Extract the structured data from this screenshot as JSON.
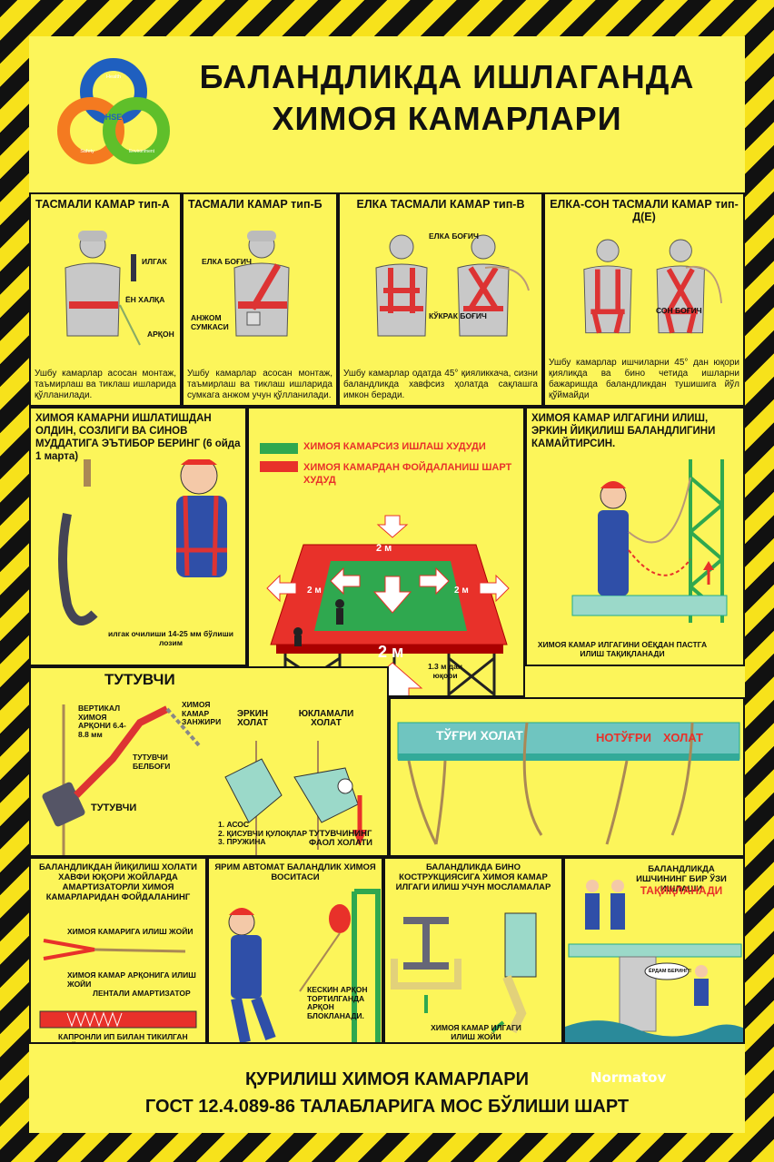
{
  "title_line1": "БАЛАНДЛИКДА ИШЛАГАНДА",
  "title_line2": "ХИМОЯ КАМАРЛАРИ",
  "logo": {
    "center": "HSE",
    "top": "Health",
    "left": "Safety",
    "right": "Environment",
    "colors": [
      "#1f5fbf",
      "#f47a20",
      "#5fbf2a"
    ]
  },
  "belts": [
    {
      "title": "ТАСМАЛИ КАМАР тип-А",
      "labels": [
        "ИЛГАК",
        "ЁН ХАЛҚА",
        "АРҚОН"
      ],
      "text": "Ушбу камарлар асосан монтаж, таъмирлаш ва тиклаш ишларида қўлланилади."
    },
    {
      "title": "ТАСМАЛИ КАМАР тип-Б",
      "labels": [
        "ЕЛКА БОҒИЧ",
        "АНЖОМ СУМКАСИ"
      ],
      "text": "Ушбу камарлар асосан монтаж, таъмирлаш ва тиклаш ишларида сумкага анжом учун қўлланилади."
    },
    {
      "title": "ЕЛКА ТАСМАЛИ КАМАР тип-В",
      "labels": [
        "ЕЛКА БОҒИЧ",
        "КЎКРАК БОҒИЧ"
      ],
      "text": "Ушбу камарлар одатда 45° қияликкача, сизни баландликда хавфсиз ҳолатда сақлашга имкон беради."
    },
    {
      "title": "ЕЛКА-СОН ТАСМАЛИ КАМАР тип-Д(Е)",
      "labels": [
        "СОН БОҒИЧ"
      ],
      "text": "Ушбу камарлар ишчиларни 45° дан юқори қияликда ва бино четида ишларни бажаришда баландликдан тушишига йўл қўймайди"
    }
  ],
  "check": {
    "title": "ХИМОЯ КАМАРНИ ИШЛАТИШДАН ОЛДИН, СОЗЛИГИ ВА СИНОВ МУДДАТИГА ЭЪТИБОР БЕРИНГ (6 ойда 1 марта)",
    "note": "илгак очилиши 14-25 мм бўлиши лозим"
  },
  "zone": {
    "legend_green": "ХИМОЯ КАМАРСИЗ ИШЛАШ ХУДУДИ",
    "legend_red": "ХИМОЯ КАМАРДАН ФОЙДАЛАНИШ ШАРТ ХУДУД",
    "d_small": "2 м",
    "d_big": "2 м",
    "height": "1.3 м дан юқори"
  },
  "hook": {
    "title": "ХИМОЯ КАМАР ИЛГАГИНИ ИЛИШ, ЭРКИН ЙИҚИЛИШ БАЛАНДЛИГИНИ КАМАЙТИРСИН.",
    "note": "ХИМОЯ КАМАР ИЛГАГИНИ ОЁҚДАН ПАСТГА ИЛИШ ТАҚИҚЛАНАДИ"
  },
  "catcher": {
    "title": "ТУТУВЧИ",
    "rope": "ВЕРТИКАЛ ХИМОЯ АРҚОНИ 6.4-8.8 мм",
    "chain": "ХИМОЯ КАМАР ЗАНЖИРИ",
    "strap": "ТУТУВЧИ БЕЛБОҒИ",
    "device": "ТУТУВЧИ",
    "free": "ЭРКИН ХОЛАТ",
    "loaded": "ЮКЛАМАЛИ ХОЛАТ",
    "parts": [
      "1. АСОС",
      "2. ҚИСУВЧИ ҚУЛОҚЛАР",
      "3. ПРУЖИНА"
    ],
    "active": "ТУТУВЧИНИНГ ФАОЛ ХОЛАТИ"
  },
  "beam": {
    "right": "ТЎҒРИ ХОЛАТ",
    "wrong_a": "НОТЎҒРИ",
    "wrong_b": "ХОЛАТ"
  },
  "absorber": {
    "title": "БАЛАНДЛИКДАН ЙИҚИЛИШ ХОЛАТИ ХАВФИ ЮҚОРИ ЖОЙЛАРДА АМАРТИЗАТОРЛИ ХИМОЯ КАМАРЛАРИДАН ФОЙДАЛАНИНГ",
    "l1": "ХИМОЯ КАМАРИГА ИЛИШ ЖОЙИ",
    "l2": "ХИМОЯ КАМАР АРҚОНИГА ИЛИШ ЖОЙИ",
    "l3": "ЛЕНТАЛИ АМАРТИЗАТОР",
    "l4": "КАПРОНЛИ ИП БИЛАН ТИКИЛГАН ЖОЙИ"
  },
  "semi": {
    "title": "ЯРИМ АВТОМАТ БАЛАНДЛИК ХИМОЯ ВОСИТАСИ",
    "note": "КЕСКИН АРҚОН ТОРТИЛГАНДА АРҚОН БЛОКЛАНАДИ."
  },
  "structure": {
    "title": "БАЛАНДЛИКДА БИНО КОСТРУКЦИЯСИГА ХИМОЯ КАМАР ИЛГАГИ ИЛИШ УЧУН МОСЛАМАЛАР",
    "note": "ХИМОЯ КАМАР ИЛГАГИ ИЛИШ ЖОЙИ"
  },
  "alone": {
    "title1": "БАЛАНДЛИКДА ИШЧИНИНГ БИР ЎЗИ ИШЛАШИ",
    "title2": "ТАҚИҚЛАНАДИ",
    "bubble": "ЁРДАМ БЕРИНГ!!"
  },
  "footer_line1": "ҚУРИЛИШ ХИМОЯ КАМАРЛАРИ",
  "footer_line2": "ГОСТ 12.4.089-86 ТАЛАБЛАРИГА МОС БЎЛИШИ ШАРТ",
  "signature": "Normatov",
  "colors": {
    "yellow": "#fcf55a",
    "red": "#e8312a",
    "green": "#2fa84f",
    "blue": "#2f4fa8"
  }
}
